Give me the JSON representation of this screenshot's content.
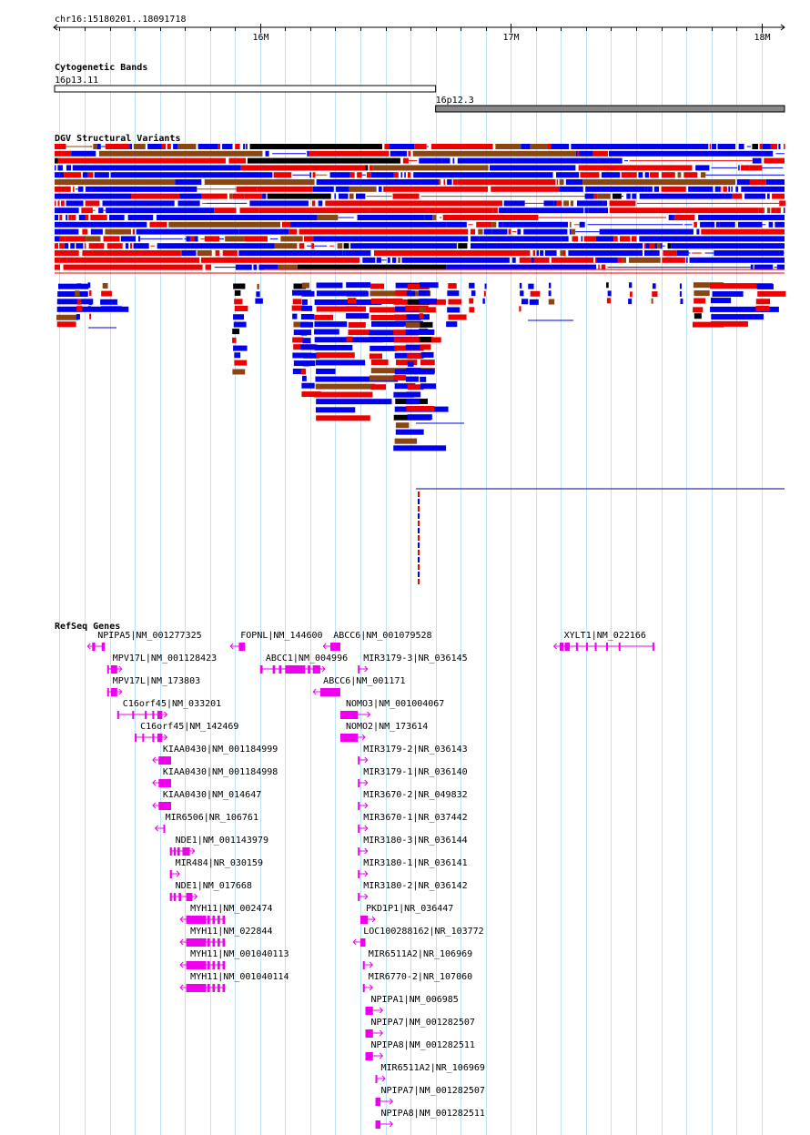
{
  "ruler": {
    "label": "chr16:15180201..18091718",
    "start": 15180201,
    "end": 18091718,
    "ticks": [
      {
        "pos": 16000000,
        "label": "16M"
      },
      {
        "pos": 17000000,
        "label": "17M"
      },
      {
        "pos": 18000000,
        "label": "18M"
      }
    ]
  },
  "cytobands": {
    "title": "Cytogenetic Bands",
    "bands": [
      {
        "name": "16p13.11",
        "start": 15180201,
        "end": 16700000,
        "color": "#ffffff"
      },
      {
        "name": "16p12.3",
        "start": 16700000,
        "end": 18091718,
        "color": "#888888"
      }
    ]
  },
  "dgv": {
    "title": "DGV Structural Variants",
    "colors": {
      "gain": "#0000ee",
      "loss": "#ee0000",
      "both": "#8b4513",
      "other": "#000000"
    }
  },
  "refseq": {
    "title": "RefSeq Genes",
    "color": "#ee00ee",
    "genes": [
      {
        "label": "NPIPA5|NM_001277325",
        "start": 15330000,
        "end": 15380000,
        "strand": "-",
        "exons": [
          [
            15330000,
            15342000
          ],
          [
            15368000,
            15380000
          ]
        ]
      },
      {
        "label": "MPV17L|NM_001128423",
        "start": 15390000,
        "end": 15430000,
        "strand": "+",
        "exons": [
          [
            15390000,
            15396000
          ],
          [
            15405000,
            15430000
          ]
        ]
      },
      {
        "label": "MPV17L|NM_173803",
        "start": 15390000,
        "end": 15430000,
        "strand": "+",
        "exons": [
          [
            15390000,
            15396000
          ],
          [
            15405000,
            15430000
          ]
        ]
      },
      {
        "label": "C16orf45|NM_033201",
        "start": 15430000,
        "end": 15610000,
        "strand": "+",
        "exons": [
          [
            15430000,
            15434000
          ],
          [
            15490000,
            15496000
          ],
          [
            15540000,
            15546000
          ],
          [
            15570000,
            15576000
          ],
          [
            15590000,
            15610000
          ]
        ]
      },
      {
        "label": "C16orf45|NM_142469",
        "start": 15500000,
        "end": 15610000,
        "strand": "+",
        "exons": [
          [
            15500000,
            15506000
          ],
          [
            15530000,
            15536000
          ],
          [
            15570000,
            15576000
          ],
          [
            15590000,
            15610000
          ]
        ]
      },
      {
        "label": "KIAA0430|NM_001184999",
        "start": 15590000,
        "end": 15645000,
        "strand": "-",
        "exons": [
          [
            15595000,
            15645000
          ]
        ]
      },
      {
        "label": "KIAA0430|NM_001184998",
        "start": 15590000,
        "end": 15645000,
        "strand": "-",
        "exons": [
          [
            15595000,
            15645000
          ]
        ]
      },
      {
        "label": "KIAA0430|NM_014647",
        "start": 15590000,
        "end": 15645000,
        "strand": "-",
        "exons": [
          [
            15595000,
            15645000
          ]
        ]
      },
      {
        "label": "MIR6506|NR_106761",
        "start": 15600000,
        "end": 15620000,
        "strand": "-",
        "exons": [
          [
            15614000,
            15620000
          ]
        ]
      },
      {
        "label": "NDE1|NM_001143979",
        "start": 15640000,
        "end": 15720000,
        "strand": "+",
        "exons": [
          [
            15640000,
            15648000
          ],
          [
            15655000,
            15663000
          ],
          [
            15670000,
            15680000
          ],
          [
            15690000,
            15720000
          ]
        ]
      },
      {
        "label": "MIR484|NR_030159",
        "start": 15640000,
        "end": 15660000,
        "strand": "+",
        "exons": [
          [
            15640000,
            15648000
          ]
        ]
      },
      {
        "label": "NDE1|NM_017668",
        "start": 15640000,
        "end": 15730000,
        "strand": "+",
        "exons": [
          [
            15640000,
            15648000
          ],
          [
            15655000,
            15663000
          ],
          [
            15675000,
            15685000
          ],
          [
            15705000,
            15730000
          ]
        ]
      },
      {
        "label": "MYH11|NM_002474",
        "start": 15700000,
        "end": 15860000,
        "strand": "-",
        "exons": [
          [
            15705000,
            15785000
          ],
          [
            15790000,
            15800000
          ],
          [
            15810000,
            15820000
          ],
          [
            15830000,
            15840000
          ],
          [
            15850000,
            15860000
          ]
        ]
      },
      {
        "label": "MYH11|NM_022844",
        "start": 15700000,
        "end": 15860000,
        "strand": "-",
        "exons": [
          [
            15705000,
            15785000
          ],
          [
            15790000,
            15800000
          ],
          [
            15810000,
            15820000
          ],
          [
            15830000,
            15840000
          ],
          [
            15850000,
            15860000
          ]
        ]
      },
      {
        "label": "MYH11|NM_001040113",
        "start": 15700000,
        "end": 15860000,
        "strand": "-",
        "exons": [
          [
            15705000,
            15785000
          ],
          [
            15790000,
            15800000
          ],
          [
            15810000,
            15820000
          ],
          [
            15830000,
            15840000
          ],
          [
            15850000,
            15860000
          ]
        ]
      },
      {
        "label": "MYH11|NM_001040114",
        "start": 15700000,
        "end": 15860000,
        "strand": "-",
        "exons": [
          [
            15705000,
            15785000
          ],
          [
            15790000,
            15800000
          ],
          [
            15810000,
            15820000
          ],
          [
            15830000,
            15840000
          ],
          [
            15850000,
            15860000
          ]
        ]
      },
      {
        "label": "FOPNL|NM_144600",
        "start": 15900000,
        "end": 15940000,
        "strand": "-",
        "exons": [
          [
            15915000,
            15940000
          ]
        ]
      },
      {
        "label": "ABCC1|NM_004996",
        "start": 16000000,
        "end": 16240000,
        "strand": "+",
        "exons": [
          [
            16000000,
            16010000
          ],
          [
            16050000,
            16060000
          ],
          [
            16075000,
            16085000
          ],
          [
            16100000,
            16180000
          ],
          [
            16190000,
            16200000
          ],
          [
            16210000,
            16240000
          ]
        ]
      },
      {
        "label": "ABCC6|NM_001171",
        "start": 16230000,
        "end": 16320000,
        "strand": "-",
        "exons": [
          [
            16240000,
            16320000
          ]
        ]
      },
      {
        "label": "ABCC6|NM_001079528",
        "start": 16270000,
        "end": 16320000,
        "strand": "-",
        "exons": [
          [
            16280000,
            16320000
          ]
        ]
      },
      {
        "label": "NOMO3|NM_001004067",
        "start": 16320000,
        "end": 16420000,
        "strand": "+",
        "exons": [
          [
            16320000,
            16390000
          ]
        ]
      },
      {
        "label": "NOMO2|NM_173614",
        "start": 16320000,
        "end": 16400000,
        "strand": "+",
        "exons": [
          [
            16320000,
            16390000
          ]
        ]
      },
      {
        "label": "MIR3179-3|NR_036145",
        "start": 16390000,
        "end": 16410000,
        "strand": "+",
        "exons": [
          [
            16390000,
            16396000
          ]
        ]
      },
      {
        "label": "MIR3179-2|NR_036143",
        "start": 16390000,
        "end": 16410000,
        "strand": "+",
        "exons": [
          [
            16390000,
            16396000
          ]
        ]
      },
      {
        "label": "MIR3179-1|NR_036140",
        "start": 16390000,
        "end": 16410000,
        "strand": "+",
        "exons": [
          [
            16390000,
            16396000
          ]
        ]
      },
      {
        "label": "MIR3670-2|NR_049832",
        "start": 16390000,
        "end": 16410000,
        "strand": "+",
        "exons": [
          [
            16390000,
            16396000
          ]
        ]
      },
      {
        "label": "MIR3670-1|NR_037442",
        "start": 16390000,
        "end": 16410000,
        "strand": "+",
        "exons": [
          [
            16390000,
            16396000
          ]
        ]
      },
      {
        "label": "MIR3180-3|NR_036144",
        "start": 16390000,
        "end": 16410000,
        "strand": "+",
        "exons": [
          [
            16390000,
            16396000
          ]
        ]
      },
      {
        "label": "MIR3180-1|NR_036141",
        "start": 16390000,
        "end": 16410000,
        "strand": "+",
        "exons": [
          [
            16390000,
            16396000
          ]
        ]
      },
      {
        "label": "MIR3180-2|NR_036142",
        "start": 16390000,
        "end": 16410000,
        "strand": "+",
        "exons": [
          [
            16390000,
            16396000
          ]
        ]
      },
      {
        "label": "PKD1P1|NR_036447",
        "start": 16400000,
        "end": 16440000,
        "strand": "+",
        "exons": [
          [
            16400000,
            16430000
          ]
        ]
      },
      {
        "label": "LOC100288162|NR_103772",
        "start": 16390000,
        "end": 16420000,
        "strand": "-",
        "exons": [
          [
            16400000,
            16420000
          ]
        ]
      },
      {
        "label": "MIR6511A2|NR_106969",
        "start": 16410000,
        "end": 16430000,
        "strand": "+",
        "exons": [
          [
            16410000,
            16416000
          ]
        ]
      },
      {
        "label": "MIR6770-2|NR_107060",
        "start": 16410000,
        "end": 16430000,
        "strand": "+",
        "exons": [
          [
            16410000,
            16416000
          ]
        ]
      },
      {
        "label": "NPIPA1|NM_006985",
        "start": 16420000,
        "end": 16470000,
        "strand": "+",
        "exons": [
          [
            16420000,
            16450000
          ]
        ]
      },
      {
        "label": "NPIPA7|NM_001282507",
        "start": 16420000,
        "end": 16470000,
        "strand": "+",
        "exons": [
          [
            16420000,
            16450000
          ]
        ]
      },
      {
        "label": "NPIPA8|NM_001282511",
        "start": 16420000,
        "end": 16470000,
        "strand": "+",
        "exons": [
          [
            16420000,
            16450000
          ]
        ]
      },
      {
        "label": "MIR6511A2|NR_106969",
        "start": 16460000,
        "end": 16480000,
        "strand": "+",
        "exons": [
          [
            16460000,
            16466000
          ]
        ]
      },
      {
        "label": "NPIPA7|NM_001282507",
        "start": 16460000,
        "end": 16510000,
        "strand": "+",
        "exons": [
          [
            16460000,
            16480000
          ]
        ]
      },
      {
        "label": "NPIPA8|NM_001282511",
        "start": 16460000,
        "end": 16510000,
        "strand": "+",
        "exons": [
          [
            16460000,
            16480000
          ]
        ]
      },
      {
        "label": "XYLT1|NM_022166",
        "start": 17190000,
        "end": 17570000,
        "strand": "-",
        "exons": [
          [
            17195000,
            17210000
          ],
          [
            17215000,
            17235000
          ],
          [
            17260000,
            17265000
          ],
          [
            17300000,
            17304000
          ],
          [
            17335000,
            17339000
          ],
          [
            17380000,
            17384000
          ],
          [
            17430000,
            17434000
          ],
          [
            17565000,
            17570000
          ]
        ]
      }
    ]
  }
}
